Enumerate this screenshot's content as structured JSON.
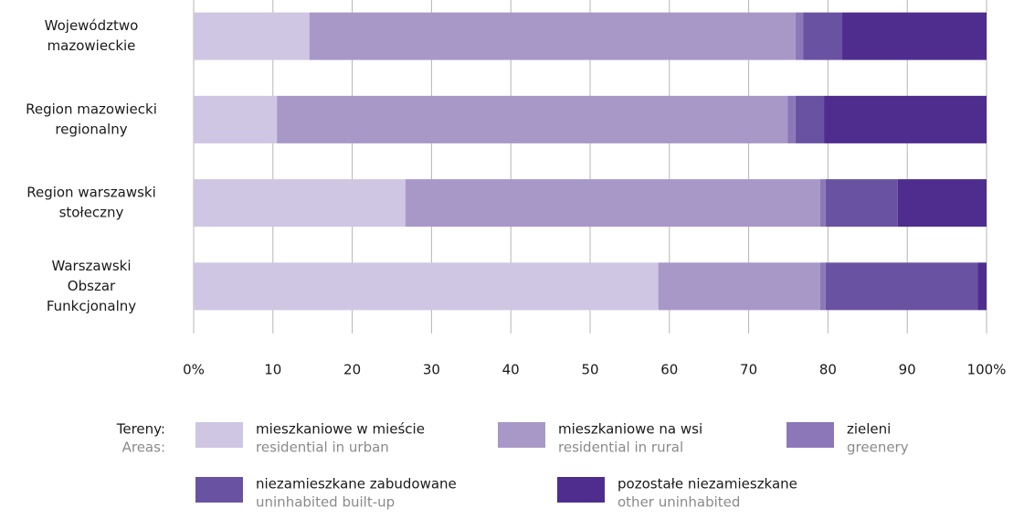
{
  "chart_data": {
    "type": "stacked_barh",
    "categories": [
      [
        "Województwo",
        "mazowieckie"
      ],
      [
        "Region mazowiecki",
        "regionalny"
      ],
      [
        "Region warszawski",
        "stołeczny"
      ],
      [
        "Warszawski",
        "Obszar",
        "Funkcjonalny"
      ]
    ],
    "series": [
      {
        "name": "mieszkaniowe w mieście",
        "name_en": "residential in urban",
        "color": "#cfc6e3",
        "values": [
          14.6,
          10.5,
          26.7,
          58.6
        ]
      },
      {
        "name": "mieszkaniowe na wsi",
        "name_en": "residential in rural",
        "color": "#a898c8",
        "values": [
          61.3,
          64.4,
          52.3,
          20.4
        ]
      },
      {
        "name": "zieleni",
        "name_en": "greenery",
        "color": "#8c78b8",
        "values": [
          1.0,
          1.0,
          0.7,
          0.7
        ]
      },
      {
        "name": "niezamieszkane zabudowane",
        "name_en": "uninhabited built-up",
        "color": "#6a52a3",
        "values": [
          4.9,
          3.6,
          9.1,
          19.2
        ]
      },
      {
        "name": "pozostałe niezamieszkane",
        "name_en": "other uninhabited",
        "color": "#4e2d8f",
        "values": [
          18.2,
          20.5,
          11.2,
          1.1
        ]
      }
    ],
    "xlim": [
      0,
      100
    ],
    "xticks": [
      {
        "value": 0,
        "label": "0%"
      },
      10,
      20,
      30,
      40,
      50,
      60,
      70,
      80,
      90,
      {
        "value": 100,
        "label": "100%"
      }
    ],
    "grid": true,
    "legend_title": "Tereny:",
    "legend_title_en": "Areas:"
  }
}
